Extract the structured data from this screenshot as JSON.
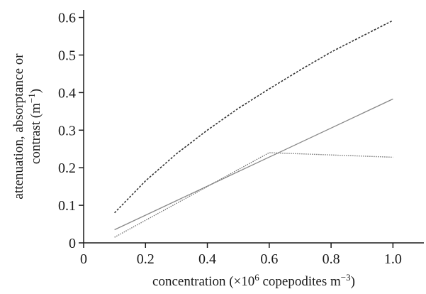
{
  "chart_data": {
    "type": "line",
    "xlabel": {
      "prefix": "concentration (×10",
      "sup": "6",
      "middle": " copepodites m",
      "sup2": "−3",
      "suffix": ")"
    },
    "ylabel": {
      "line1": "attenuation, absorptance or",
      "line2_prefix": "contrast (m",
      "line2_sup": "−1",
      "line2_suffix": ")"
    },
    "xlim": [
      0,
      1.1
    ],
    "ylim": [
      0,
      0.62
    ],
    "xticks": [
      0,
      0.2,
      0.4,
      0.6,
      0.8,
      1.0
    ],
    "xtick_labels": [
      "0",
      "0.2",
      "0.4",
      "0.6",
      "0.8",
      "1.0"
    ],
    "yticks": [
      0,
      0.1,
      0.2,
      0.3,
      0.4,
      0.5,
      0.6
    ],
    "ytick_labels": [
      "0",
      "0.1",
      "0.2",
      "0.3",
      "0.4",
      "0.5",
      "0.6"
    ],
    "grid": false,
    "series": [
      {
        "style": "dashed-dark",
        "color": "#333333",
        "points": [
          [
            0.1,
            0.08
          ],
          [
            0.2,
            0.165
          ],
          [
            0.3,
            0.237
          ],
          [
            0.4,
            0.3
          ],
          [
            0.5,
            0.358
          ],
          [
            0.6,
            0.41
          ],
          [
            0.7,
            0.46
          ],
          [
            0.8,
            0.508
          ],
          [
            0.9,
            0.55
          ],
          [
            1.0,
            0.592
          ]
        ]
      },
      {
        "style": "solid-gray",
        "color": "#888888",
        "points": [
          [
            0.1,
            0.035
          ],
          [
            1.0,
            0.383
          ]
        ]
      },
      {
        "style": "dotted-gray",
        "color": "#777777",
        "points": [
          [
            0.1,
            0.015
          ],
          [
            0.6,
            0.24
          ],
          [
            1.0,
            0.228
          ]
        ]
      }
    ]
  }
}
